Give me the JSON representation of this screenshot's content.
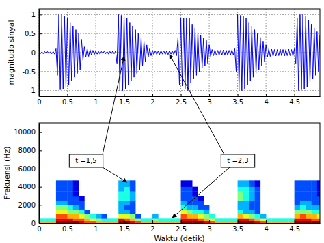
{
  "chart_data": [
    {
      "type": "line",
      "ylabel": "magnitudo sinyal",
      "color": "#0000ff",
      "grid": true,
      "xlim": [
        0,
        4.95
      ],
      "xticks": [
        0,
        0.5,
        1,
        1.5,
        2,
        2.5,
        3,
        3.5,
        4,
        4.5
      ],
      "ylim": [
        -1.15,
        1.15
      ],
      "yticks": [
        -1,
        -0.5,
        0,
        0.5,
        1
      ],
      "x": [
        0,
        0.025,
        0.05,
        0.075,
        0.1,
        0.125,
        0.15,
        0.175,
        0.2,
        0.225,
        0.25,
        0.275,
        0.3,
        0.325,
        0.35,
        0.375,
        0.4,
        0.425,
        0.45,
        0.475,
        0.5,
        0.525,
        0.55,
        0.575,
        0.6,
        0.625,
        0.65,
        0.675,
        0.7,
        0.725,
        0.75,
        0.775,
        0.8,
        0.825,
        0.85,
        0.875,
        0.9,
        0.925,
        0.95,
        0.975,
        1,
        1.025,
        1.05,
        1.075,
        1.1,
        1.125,
        1.15,
        1.175,
        1.2,
        1.225,
        1.25,
        1.275,
        1.3,
        1.325,
        1.35,
        1.375,
        1.4,
        1.425,
        1.45,
        1.475,
        1.5,
        1.525,
        1.55,
        1.575,
        1.6,
        1.625,
        1.65,
        1.675,
        1.7,
        1.725,
        1.75,
        1.775,
        1.8,
        1.825,
        1.85,
        1.875,
        1.9,
        1.925,
        1.95,
        1.975,
        2,
        2.025,
        2.05,
        2.075,
        2.1,
        2.125,
        2.15,
        2.175,
        2.2,
        2.225,
        2.25,
        2.275,
        2.3,
        2.325,
        2.35,
        2.375,
        2.4,
        2.425,
        2.45,
        2.475,
        2.5,
        2.525,
        2.55,
        2.575,
        2.6,
        2.625,
        2.65,
        2.675,
        2.7,
        2.725,
        2.75,
        2.775,
        2.8,
        2.825,
        2.85,
        2.875,
        2.9,
        2.925,
        2.95,
        2.975,
        3,
        3.025,
        3.05,
        3.075,
        3.1,
        3.125,
        3.15,
        3.175,
        3.2,
        3.225,
        3.25,
        3.275,
        3.3,
        3.325,
        3.35,
        3.375,
        3.4,
        3.425,
        3.45,
        3.475,
        3.5,
        3.525,
        3.55,
        3.575,
        3.6,
        3.625,
        3.65,
        3.675,
        3.7,
        3.725,
        3.75,
        3.775,
        3.8,
        3.825,
        3.85,
        3.875,
        3.9,
        3.925,
        3.95,
        3.975,
        4,
        4.025,
        4.05,
        4.075,
        4.1,
        4.125,
        4.15,
        4.175,
        4.2,
        4.225,
        4.25,
        4.275,
        4.3,
        4.325,
        4.35,
        4.375,
        4.4,
        4.425,
        4.45,
        4.475,
        4.5,
        4.525,
        4.55,
        4.575,
        4.6,
        4.625,
        4.65,
        4.675,
        4.7,
        4.725,
        4.75,
        4.775,
        4.8,
        4.825,
        4.85,
        4.875,
        4.9,
        4.925,
        4.95
      ],
      "values": [
        0.03,
        -0.03,
        0.02,
        -0.03,
        0.03,
        -0.02,
        0.03,
        -0.03,
        0.02,
        -0.03,
        0.03,
        -0.04,
        0.1,
        -0.6,
        1.0,
        -0.98,
        1.0,
        -0.97,
        0.95,
        -0.92,
        0.9,
        -0.85,
        0.8,
        -0.75,
        0.7,
        -0.65,
        0.6,
        -0.55,
        0.5,
        -0.45,
        0.35,
        -0.2,
        0.15,
        -0.12,
        0.1,
        -0.1,
        0.08,
        -0.07,
        0.06,
        -0.05,
        0.04,
        -0.04,
        0.03,
        -0.04,
        0.03,
        -0.03,
        0.04,
        -0.03,
        0.03,
        -0.04,
        0.03,
        -0.03,
        0.04,
        -0.03,
        0.04,
        -0.3,
        1.0,
        -1.0,
        0.98,
        -1.0,
        0.97,
        -0.95,
        0.9,
        -0.85,
        0.8,
        -0.75,
        0.7,
        -0.65,
        0.6,
        -0.55,
        0.5,
        -0.45,
        0.4,
        -0.35,
        0.3,
        -0.25,
        0.2,
        -0.12,
        0.1,
        -0.08,
        0.06,
        -0.05,
        0.05,
        -0.05,
        0.04,
        -0.05,
        0.05,
        -0.04,
        0.05,
        -0.05,
        0.04,
        -0.05,
        0.05,
        -0.04,
        0.05,
        -0.05,
        0.06,
        -0.08,
        0.4,
        -0.85,
        0.9,
        -0.88,
        0.9,
        -0.95,
        0.9,
        -1.0,
        0.9,
        -0.8,
        0.75,
        -0.7,
        0.65,
        -0.6,
        0.55,
        -0.5,
        0.45,
        -0.4,
        0.38,
        -0.35,
        0.32,
        -0.3,
        0.2,
        -0.1,
        0.08,
        -0.08,
        0.07,
        -0.07,
        0.06,
        -0.07,
        0.06,
        -0.06,
        0.07,
        -0.06,
        0.06,
        -0.07,
        0.06,
        -0.06,
        0.07,
        -0.06,
        0.1,
        -0.5,
        1.0,
        -1.0,
        0.98,
        -1.0,
        0.97,
        -0.95,
        0.9,
        -0.85,
        0.8,
        -0.75,
        0.7,
        -0.65,
        0.6,
        -0.55,
        0.5,
        -0.45,
        0.4,
        -0.35,
        0.3,
        -0.25,
        0.2,
        -0.12,
        0.1,
        -0.1,
        0.09,
        -0.1,
        0.08,
        -0.09,
        0.08,
        -0.08,
        0.09,
        -0.08,
        0.08,
        -0.09,
        0.08,
        -0.08,
        0.09,
        -0.08,
        0.08,
        -0.09,
        0.1,
        -0.3,
        0.9,
        -1.0,
        1.0,
        -0.98,
        1.0,
        -0.97,
        0.95,
        -0.9,
        0.85,
        -0.8,
        0.75,
        -0.7,
        0.65,
        -0.6,
        0.55,
        -0.5,
        0.45
      ],
      "annotations": [
        {
          "text": "t =1,5",
          "x": 1.5,
          "y": -0.1
        },
        {
          "text": "t =2,3",
          "x": 2.3,
          "y": -0.05
        }
      ]
    },
    {
      "type": "heatmap",
      "xlabel": "Waktu (detik)",
      "ylabel": "Frekuensi (Hz)",
      "grid": false,
      "xlim": [
        0,
        4.95
      ],
      "xticks": [
        0,
        0.5,
        1,
        1.5,
        2,
        2.5,
        3,
        3.5,
        4,
        4.5
      ],
      "ylim": [
        0,
        11025
      ],
      "yticks": [
        0,
        2000,
        4000,
        6000,
        8000,
        10000
      ],
      "clim": [
        0,
        10
      ],
      "x_bins": [
        0,
        0.1,
        0.2,
        0.3,
        0.4,
        0.5,
        0.6,
        0.7,
        0.8,
        0.9,
        1,
        1.1,
        1.2,
        1.3,
        1.4,
        1.5,
        1.6,
        1.7,
        1.8,
        1.9,
        2,
        2.1,
        2.2,
        2.3,
        2.4,
        2.5,
        2.6,
        2.7,
        2.8,
        2.9,
        3,
        3.1,
        3.2,
        3.3,
        3.4,
        3.5,
        3.6,
        3.7,
        3.8,
        3.9,
        4,
        4.1,
        4.2,
        4.3,
        4.4,
        4.5,
        4.6,
        4.7,
        4.8,
        4.9,
        5
      ],
      "y_bins": [
        0,
        250,
        500,
        1000,
        1500,
        2000,
        2500,
        3000,
        3500,
        4000,
        4700
      ],
      "z": [
        [
          7,
          7,
          7,
          10,
          10,
          10,
          10,
          9,
          8,
          8,
          7,
          7,
          7,
          7,
          10,
          10,
          9,
          8,
          7,
          7,
          7,
          7,
          7,
          7,
          7,
          10,
          10,
          10,
          10,
          9,
          8,
          7,
          7,
          7,
          7,
          10,
          10,
          10,
          9,
          8,
          7,
          7,
          7,
          7,
          7,
          10,
          10,
          10,
          10,
          10
        ],
        [
          4,
          4,
          4,
          9,
          9,
          9,
          8,
          8,
          7,
          6,
          5,
          4,
          4,
          4,
          9,
          8,
          7,
          5,
          4,
          4,
          5,
          4,
          4,
          4,
          4,
          9,
          9,
          9,
          8,
          7,
          6,
          4,
          4,
          4,
          4,
          9,
          9,
          8,
          7,
          6,
          4,
          4,
          4,
          4,
          4,
          9,
          9,
          9,
          8,
          8
        ],
        [
          null,
          null,
          null,
          8,
          8,
          7,
          7,
          6,
          5,
          4,
          3,
          2,
          null,
          null,
          6,
          6,
          5,
          2,
          null,
          null,
          3,
          null,
          null,
          null,
          null,
          8,
          7,
          7,
          6,
          5,
          4,
          null,
          null,
          null,
          null,
          7,
          6,
          5,
          4,
          3,
          null,
          null,
          null,
          null,
          null,
          7,
          8,
          7,
          7,
          6
        ],
        [
          null,
          null,
          null,
          6,
          6,
          5,
          5,
          4,
          2,
          null,
          null,
          null,
          null,
          null,
          3,
          3,
          2,
          null,
          null,
          null,
          null,
          null,
          null,
          null,
          null,
          6,
          5,
          4,
          4,
          3,
          null,
          null,
          null,
          null,
          null,
          4,
          3,
          3,
          2,
          null,
          null,
          null,
          null,
          null,
          null,
          5,
          5,
          5,
          4,
          4
        ],
        [
          null,
          null,
          null,
          5,
          5,
          4,
          3,
          2,
          null,
          null,
          null,
          null,
          null,
          null,
          3,
          2,
          2,
          null,
          null,
          null,
          null,
          null,
          null,
          null,
          null,
          4,
          3,
          3,
          2,
          2,
          null,
          null,
          null,
          null,
          null,
          3,
          3,
          2,
          2,
          null,
          null,
          null,
          null,
          null,
          null,
          3,
          4,
          3,
          3,
          3
        ],
        [
          null,
          null,
          null,
          3,
          3,
          2,
          2,
          2,
          null,
          null,
          null,
          null,
          null,
          null,
          3,
          3,
          2,
          null,
          null,
          null,
          null,
          null,
          null,
          null,
          null,
          3,
          2,
          2,
          2,
          null,
          null,
          null,
          null,
          null,
          null,
          3,
          3,
          2,
          2,
          null,
          null,
          null,
          null,
          null,
          null,
          2,
          3,
          3,
          2,
          2
        ],
        [
          null,
          null,
          null,
          2,
          2,
          2,
          2,
          1,
          null,
          null,
          null,
          null,
          null,
          null,
          4,
          4,
          3,
          null,
          null,
          null,
          null,
          null,
          null,
          null,
          null,
          2,
          2,
          2,
          1,
          null,
          null,
          null,
          null,
          null,
          null,
          5,
          4,
          3,
          2,
          null,
          null,
          null,
          null,
          null,
          null,
          2,
          2,
          2,
          2,
          2
        ],
        [
          null,
          null,
          null,
          2,
          2,
          2,
          1,
          null,
          null,
          null,
          null,
          null,
          null,
          null,
          4,
          4,
          3,
          null,
          null,
          null,
          null,
          null,
          null,
          null,
          null,
          2,
          2,
          1,
          null,
          null,
          null,
          null,
          null,
          null,
          null,
          5,
          4,
          3,
          2,
          null,
          null,
          null,
          null,
          null,
          null,
          2,
          2,
          2,
          2,
          1
        ],
        [
          null,
          null,
          null,
          2,
          2,
          2,
          1,
          null,
          null,
          null,
          null,
          null,
          null,
          null,
          3,
          4,
          2,
          null,
          null,
          null,
          null,
          null,
          null,
          null,
          null,
          2,
          2,
          1,
          null,
          null,
          null,
          null,
          null,
          null,
          null,
          4,
          4,
          3,
          2,
          null,
          null,
          null,
          null,
          null,
          null,
          2,
          2,
          2,
          2,
          1
        ],
        [
          null,
          null,
          null,
          2,
          2,
          2,
          1,
          null,
          null,
          null,
          null,
          null,
          null,
          null,
          3,
          3,
          2,
          null,
          null,
          null,
          null,
          null,
          null,
          null,
          null,
          1,
          1,
          null,
          null,
          null,
          null,
          null,
          null,
          null,
          null,
          3,
          3,
          2,
          1,
          null,
          null,
          null,
          null,
          null,
          null,
          2,
          2,
          2,
          2,
          1
        ]
      ],
      "annotations": [
        {
          "x": 1.55,
          "y": 4500
        },
        {
          "x": 2.35,
          "y": 600
        }
      ]
    }
  ]
}
